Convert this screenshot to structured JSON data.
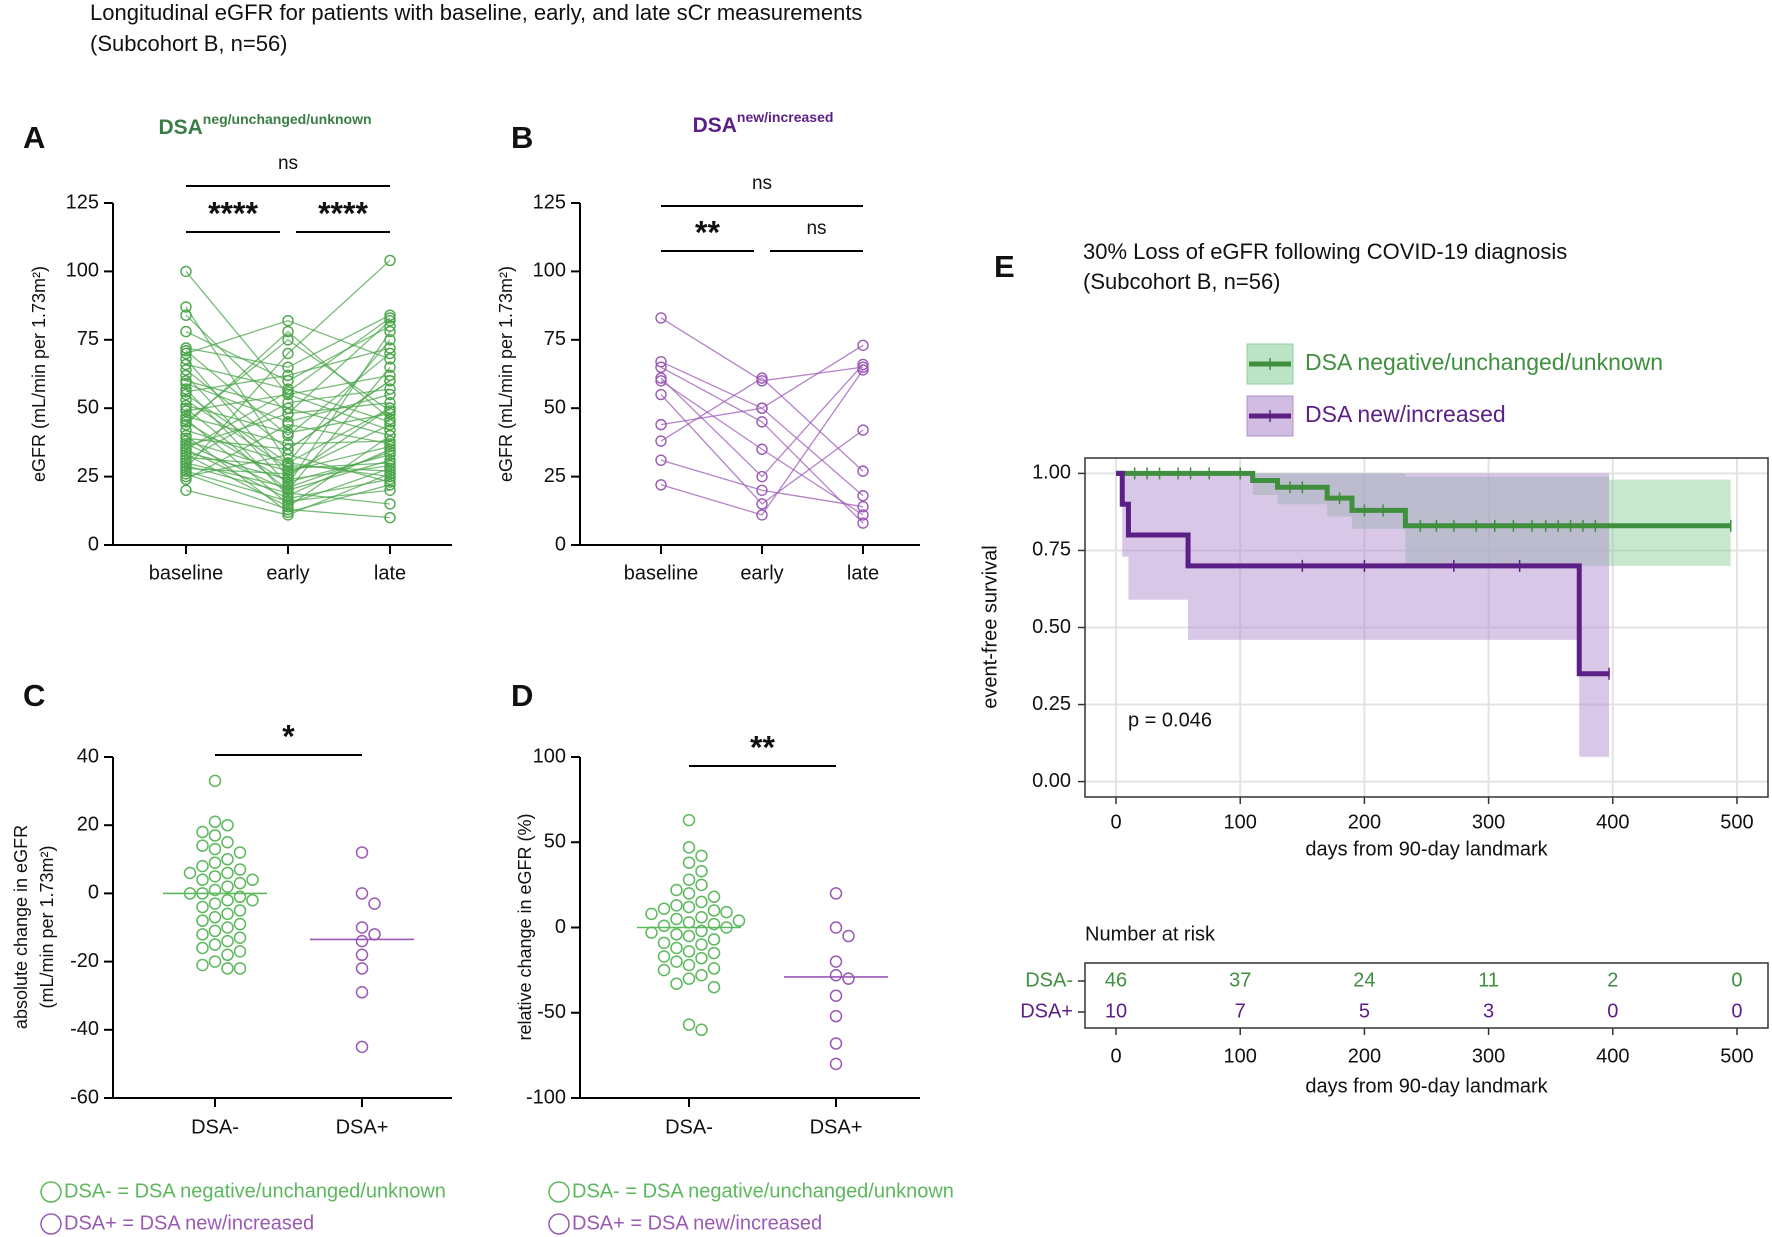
{
  "header": {
    "title": [
      "Longitudinal eGFR for patients with baseline, early, and late sCr measurements",
      "(Subcohort B, n=56)"
    ]
  },
  "chart_data": [
    {
      "type": "line",
      "panel": "A",
      "title": "DSA",
      "title_superscript": "neg/unchanged/unknown",
      "title_color": "#3a7d44",
      "color": "#4ca64c",
      "ylabel": "eGFR (mL/min per 1.73m²)",
      "categories": [
        "baseline",
        "early",
        "late"
      ],
      "ylim": [
        0,
        125
      ],
      "yticks": [
        0,
        25,
        50,
        75,
        100,
        125
      ],
      "comparisons": [
        {
          "groups": [
            0,
            2
          ],
          "label": "ns"
        },
        {
          "groups": [
            0,
            1
          ],
          "label": "****"
        },
        {
          "groups": [
            1,
            2
          ],
          "label": "****"
        }
      ],
      "series": [
        {
          "values": [
            100,
            55,
            62
          ]
        },
        {
          "values": [
            87,
            30,
            75
          ]
        },
        {
          "values": [
            84,
            48,
            82
          ]
        },
        {
          "values": [
            78,
            60,
            80
          ]
        },
        {
          "values": [
            72,
            65,
            84
          ]
        },
        {
          "values": [
            71,
            40,
            70
          ]
        },
        {
          "values": [
            70,
            82,
            68
          ]
        },
        {
          "values": [
            68,
            25,
            50
          ]
        },
        {
          "values": [
            66,
            57,
            45
          ]
        },
        {
          "values": [
            64,
            35,
            60
          ]
        },
        {
          "values": [
            62,
            22,
            78
          ]
        },
        {
          "values": [
            60,
            50,
            40
          ]
        },
        {
          "values": [
            59,
            45,
            55
          ]
        },
        {
          "values": [
            57,
            18,
            35
          ]
        },
        {
          "values": [
            56,
            62,
            72
          ]
        },
        {
          "values": [
            55,
            30,
            50
          ]
        },
        {
          "values": [
            53,
            28,
            30
          ]
        },
        {
          "values": [
            51,
            41,
            48
          ]
        },
        {
          "values": [
            50,
            20,
            65
          ]
        },
        {
          "values": [
            49,
            55,
            42
          ]
        },
        {
          "values": [
            47,
            37,
            38
          ]
        },
        {
          "values": [
            46,
            15,
            28
          ]
        },
        {
          "values": [
            45,
            23,
            33
          ]
        },
        {
          "values": [
            44,
            78,
            46
          ]
        },
        {
          "values": [
            42,
            30,
            25
          ]
        },
        {
          "values": [
            40,
            12,
            22
          ]
        },
        {
          "values": [
            39,
            35,
            60
          ]
        },
        {
          "values": [
            38,
            27,
            36
          ]
        },
        {
          "values": [
            37,
            20,
            31
          ]
        },
        {
          "values": [
            36,
            48,
            52
          ]
        },
        {
          "values": [
            35,
            17,
            24
          ]
        },
        {
          "values": [
            34,
            24,
            29
          ]
        },
        {
          "values": [
            33,
            14,
            40
          ]
        },
        {
          "values": [
            32,
            29,
            27
          ]
        },
        {
          "values": [
            31,
            52,
            57
          ]
        },
        {
          "values": [
            30,
            21,
            34
          ]
        },
        {
          "values": [
            29,
            19,
            15
          ]
        },
        {
          "values": [
            28,
            26,
            44
          ]
        },
        {
          "values": [
            27,
            16,
            20
          ]
        },
        {
          "values": [
            26,
            13,
            10
          ]
        },
        {
          "values": [
            25,
            33,
            23
          ]
        },
        {
          "values": [
            24,
            44,
            37
          ]
        },
        {
          "values": [
            28,
            70,
            104
          ]
        },
        {
          "values": [
            45,
            75,
            49
          ]
        },
        {
          "values": [
            35,
            56,
            83
          ]
        },
        {
          "values": [
            20,
            11,
            26
          ]
        }
      ]
    },
    {
      "type": "line",
      "panel": "B",
      "title": "DSA",
      "title_superscript": "new/increased",
      "title_color": "#5b1f86",
      "color": "#9b59b6",
      "ylabel": "eGFR (mL/min per 1.73m²)",
      "categories": [
        "baseline",
        "early",
        "late"
      ],
      "ylim": [
        0,
        125
      ],
      "yticks": [
        0,
        25,
        50,
        75,
        100,
        125
      ],
      "comparisons": [
        {
          "groups": [
            0,
            2
          ],
          "label": "ns"
        },
        {
          "groups": [
            0,
            1
          ],
          "label": "**"
        },
        {
          "groups": [
            1,
            2
          ],
          "label": "ns"
        }
      ],
      "series": [
        {
          "values": [
            83,
            60,
            65
          ]
        },
        {
          "values": [
            67,
            50,
            73
          ]
        },
        {
          "values": [
            65,
            45,
            8
          ]
        },
        {
          "values": [
            61,
            25,
            66
          ]
        },
        {
          "values": [
            60,
            35,
            11
          ]
        },
        {
          "values": [
            55,
            15,
            42
          ]
        },
        {
          "values": [
            44,
            50,
            18
          ]
        },
        {
          "values": [
            38,
            61,
            27
          ]
        },
        {
          "values": [
            31,
            20,
            14
          ]
        },
        {
          "values": [
            22,
            11,
            64
          ]
        }
      ]
    },
    {
      "type": "strip",
      "panel": "C",
      "ylabel": [
        "absolute change in eGFR",
        "(mL/min per 1.73m²)"
      ],
      "ylim": [
        -60,
        40
      ],
      "yticks": [
        -60,
        -40,
        -20,
        0,
        20,
        40
      ],
      "comparisons": [
        {
          "groups": [
            0,
            1
          ],
          "label": "*"
        }
      ],
      "groups": [
        {
          "name": "DSA-",
          "color": "#5cb85c",
          "median": 0,
          "values": [
            33,
            21,
            20,
            18,
            17,
            15,
            14,
            13,
            12,
            10,
            9,
            8,
            7,
            6,
            6,
            5,
            4,
            4,
            3,
            2,
            1,
            0,
            0,
            -1,
            -2,
            -3,
            -4,
            -5,
            -6,
            -7,
            -8,
            -9,
            -10,
            -11,
            -12,
            -13,
            -14,
            -15,
            -16,
            -17,
            -18,
            -20,
            -21,
            -22,
            -22,
            -2
          ]
        },
        {
          "name": "DSA+",
          "color": "#9b59b6",
          "median": -13.5,
          "values": [
            12,
            0,
            -3,
            -10,
            -12,
            -14,
            -18,
            -22,
            -29,
            -45
          ]
        }
      ],
      "legend": [
        "DSA- = DSA negative/unchanged/unknown",
        "DSA+ = DSA new/increased"
      ]
    },
    {
      "type": "strip",
      "panel": "D",
      "ylabel": [
        "relative change in eGFR (%)"
      ],
      "ylim": [
        -100,
        100
      ],
      "yticks": [
        -100,
        -50,
        0,
        50,
        100
      ],
      "comparisons": [
        {
          "groups": [
            0,
            1
          ],
          "label": "**"
        }
      ],
      "groups": [
        {
          "name": "DSA-",
          "color": "#5cb85c",
          "median": 0,
          "values": [
            63,
            47,
            42,
            38,
            33,
            28,
            25,
            22,
            20,
            18,
            15,
            13,
            12,
            11,
            10,
            9,
            8,
            6,
            5,
            3,
            2,
            1,
            0,
            -2,
            -4,
            -5,
            -7,
            -9,
            -10,
            -12,
            -14,
            -15,
            -17,
            -18,
            -20,
            -22,
            -24,
            -25,
            -28,
            -30,
            -33,
            -35,
            -57,
            -60,
            -3,
            4
          ]
        },
        {
          "name": "DSA+",
          "color": "#9b59b6",
          "median": -29,
          "values": [
            20,
            0,
            -5,
            -20,
            -28,
            -30,
            -40,
            -52,
            -68,
            -80
          ]
        }
      ],
      "legend": [
        "DSA- = DSA negative/unchanged/unknown",
        "DSA+ = DSA new/increased"
      ]
    },
    {
      "type": "survival",
      "panel": "E",
      "title": [
        "30% Loss of eGFR following COVID-19 diagnosis",
        "(Subcohort B, n=56)"
      ],
      "xlabel": "days from 90-day landmark",
      "ylabel": "event-free survival",
      "xlim": [
        -25,
        525
      ],
      "ylim": [
        -0.05,
        1.05
      ],
      "xticks": [
        0,
        100,
        200,
        300,
        400,
        500
      ],
      "yticks": [
        {
          "value": 0,
          "label": "0.00"
        },
        {
          "value": 0.25,
          "label": "0.25"
        },
        {
          "value": 0.5,
          "label": "0.50"
        },
        {
          "value": 0.75,
          "label": "0.75"
        },
        {
          "value": 1,
          "label": "1.00"
        }
      ],
      "grid": true,
      "annotation": "p = 0.046",
      "series": [
        {
          "name": "DSA negative/unchanged/unknown",
          "color": "#3f8f3f",
          "band_color": "#8fd19e",
          "x": [
            0,
            110,
            130,
            170,
            190,
            233,
            397,
            495
          ],
          "y": [
            1,
            0.977,
            0.955,
            0.92,
            0.88,
            0.83,
            0.83,
            0.83
          ],
          "ci_upper": [
            1,
            1,
            1,
            1,
            1,
            0.99,
            0.98,
            0.98
          ],
          "ci_lower": [
            1,
            0.93,
            0.9,
            0.86,
            0.82,
            0.7,
            0.7,
            0.7
          ],
          "censored": [
            15,
            25,
            35,
            50,
            60,
            75,
            100,
            140,
            150,
            180,
            200,
            215,
            245,
            258,
            272,
            290,
            305,
            320,
            335,
            346,
            356,
            366,
            376,
            386,
            495
          ]
        },
        {
          "name": "DSA new/increased",
          "color": "#5b1f86",
          "band_color": "#b38fcf",
          "x": [
            0,
            5,
            10,
            58,
            373,
            397
          ],
          "y": [
            1,
            0.9,
            0.8,
            0.7,
            0.35,
            0.35
          ],
          "ci_upper": [
            1,
            1,
            1,
            1,
            1,
            1
          ],
          "ci_lower": [
            1,
            0.73,
            0.59,
            0.46,
            0.08,
            0.08
          ],
          "censored": [
            150,
            200,
            272,
            325,
            397
          ]
        }
      ],
      "risk_table": {
        "title": "Number at risk",
        "xlabel": "days from 90-day landmark",
        "xticks": [
          0,
          100,
          200,
          300,
          400,
          500
        ],
        "rows": [
          {
            "name": "DSA-",
            "color": "#3f8f3f",
            "values": [
              46,
              37,
              24,
              11,
              2,
              0
            ]
          },
          {
            "name": "DSA+",
            "color": "#5b1f86",
            "values": [
              10,
              7,
              5,
              3,
              0,
              0
            ]
          }
        ]
      }
    }
  ]
}
